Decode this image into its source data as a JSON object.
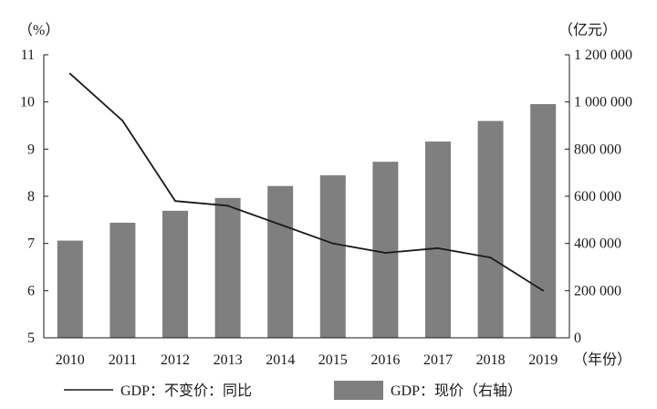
{
  "chart_data": {
    "type": "bar+line",
    "categories": [
      "2010",
      "2011",
      "2012",
      "2013",
      "2014",
      "2015",
      "2016",
      "2017",
      "2018",
      "2019"
    ],
    "series": [
      {
        "name": "GDP：现价（右轴）",
        "type": "bar",
        "axis": "right",
        "color": "#7f7f7f",
        "values": [
          412119,
          487940,
          538580,
          592963,
          643563,
          688858,
          746395,
          832036,
          919281,
          990865
        ]
      },
      {
        "name": "GDP：不变价：同比",
        "type": "line",
        "axis": "left",
        "color": "#1a1a1a",
        "values": [
          10.6,
          9.6,
          7.9,
          7.8,
          7.4,
          7.0,
          6.8,
          6.9,
          6.7,
          6.0
        ]
      }
    ],
    "left_axis": {
      "unit_label": "（%）",
      "ylim": [
        5,
        11
      ],
      "ticks": [
        "5",
        "6",
        "7",
        "8",
        "9",
        "10",
        "11"
      ]
    },
    "right_axis": {
      "unit_label": "（亿元）",
      "ylim": [
        0,
        1200000
      ],
      "ticks": [
        "0",
        "200 000",
        "400 000",
        "600 000",
        "800 000",
        "1 000 000",
        "1 200 000"
      ]
    },
    "x_axis": {
      "unit_label": "（年份）"
    },
    "legend": {
      "placement": "bottom",
      "items": [
        "GDP：不变价：同比",
        "GDP：现价（右轴）"
      ]
    }
  }
}
